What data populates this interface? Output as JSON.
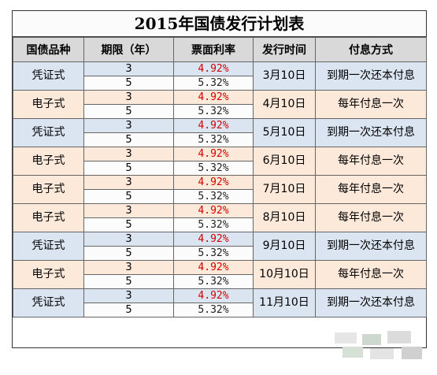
{
  "title": "2015年国债发行计划表",
  "headers": [
    "国债品种",
    "期限（年）",
    "票面利率",
    "发行时间",
    "付息方式"
  ],
  "rows": [
    {
      "type": "凭证式",
      "terms": [
        "3",
        "5"
      ],
      "rates": [
        "4.92%",
        "5.32%"
      ],
      "date": "3月10日",
      "method": "到期一次还本付息",
      "tint": "blue"
    },
    {
      "type": "电子式",
      "terms": [
        "3",
        "5"
      ],
      "rates": [
        "4.92%",
        "5.32%"
      ],
      "date": "4月10日",
      "method": "每年付息一次",
      "tint": "orange"
    },
    {
      "type": "凭证式",
      "terms": [
        "3",
        "5"
      ],
      "rates": [
        "4.92%",
        "5.32%"
      ],
      "date": "5月10日",
      "method": "到期一次还本付息",
      "tint": "blue"
    },
    {
      "type": "电子式",
      "terms": [
        "3",
        "5"
      ],
      "rates": [
        "4.92%",
        "5.32%"
      ],
      "date": "6月10日",
      "method": "每年付息一次",
      "tint": "orange"
    },
    {
      "type": "电子式",
      "terms": [
        "3",
        "5"
      ],
      "rates": [
        "4.92%",
        "5.32%"
      ],
      "date": "7月10日",
      "method": "每年付息一次",
      "tint": "orange"
    },
    {
      "type": "电子式",
      "terms": [
        "3",
        "5"
      ],
      "rates": [
        "4.92%",
        "5.32%"
      ],
      "date": "8月10日",
      "method": "每年付息一次",
      "tint": "orange"
    },
    {
      "type": "凭证式",
      "terms": [
        "3",
        "5"
      ],
      "rates": [
        "4.92%",
        "5.32%"
      ],
      "date": "9月10日",
      "method": "到期一次还本付息",
      "tint": "blue"
    },
    {
      "type": "电子式",
      "terms": [
        "3",
        "5"
      ],
      "rates": [
        "4.92%",
        "5.32%"
      ],
      "date": "10月10日",
      "method": "每年付息一次",
      "tint": "orange"
    },
    {
      "type": "凭证式",
      "terms": [
        "3",
        "5"
      ],
      "rates": [
        "4.92%",
        "5.32%"
      ],
      "date": "11月10日",
      "method": "到期一次还本付息",
      "tint": "blue"
    }
  ],
  "colors": {
    "rate_highlight": "#d00000",
    "blue_tint": "#dbe5f1",
    "orange_tint": "#fde9d9",
    "header_bg": "#d9d9d9"
  }
}
